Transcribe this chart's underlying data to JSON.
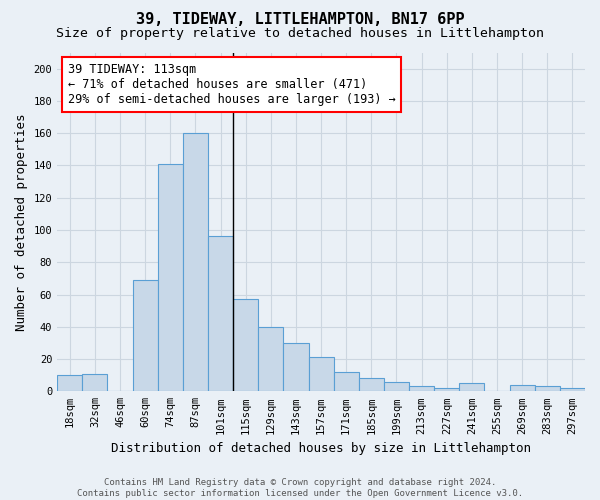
{
  "title": "39, TIDEWAY, LITTLEHAMPTON, BN17 6PP",
  "subtitle": "Size of property relative to detached houses in Littlehampton",
  "xlabel": "Distribution of detached houses by size in Littlehampton",
  "ylabel": "Number of detached properties",
  "categories": [
    "18sqm",
    "32sqm",
    "46sqm",
    "60sqm",
    "74sqm",
    "87sqm",
    "101sqm",
    "115sqm",
    "129sqm",
    "143sqm",
    "157sqm",
    "171sqm",
    "185sqm",
    "199sqm",
    "213sqm",
    "227sqm",
    "241sqm",
    "255sqm",
    "269sqm",
    "283sqm",
    "297sqm"
  ],
  "values": [
    10,
    11,
    0,
    69,
    141,
    160,
    96,
    57,
    40,
    30,
    21,
    12,
    8,
    6,
    3,
    2,
    5,
    0,
    4,
    3,
    2
  ],
  "bar_color": "#c8d8e8",
  "bar_edge_color": "#5a9fd4",
  "grid_color": "#ccd6e0",
  "background_color": "#eaf0f6",
  "annotation_line1": "39 TIDEWAY: 113sqm",
  "annotation_line2": "← 71% of detached houses are smaller (471)",
  "annotation_line3": "29% of semi-detached houses are larger (193) →",
  "vline_x_index": 6,
  "ylim": [
    0,
    210
  ],
  "yticks": [
    0,
    20,
    40,
    60,
    80,
    100,
    120,
    140,
    160,
    180,
    200
  ],
  "footer": "Contains HM Land Registry data © Crown copyright and database right 2024.\nContains public sector information licensed under the Open Government Licence v3.0.",
  "title_fontsize": 11,
  "subtitle_fontsize": 9.5,
  "xlabel_fontsize": 9,
  "ylabel_fontsize": 9,
  "tick_fontsize": 7.5,
  "annotation_fontsize": 8.5,
  "footer_fontsize": 6.5
}
